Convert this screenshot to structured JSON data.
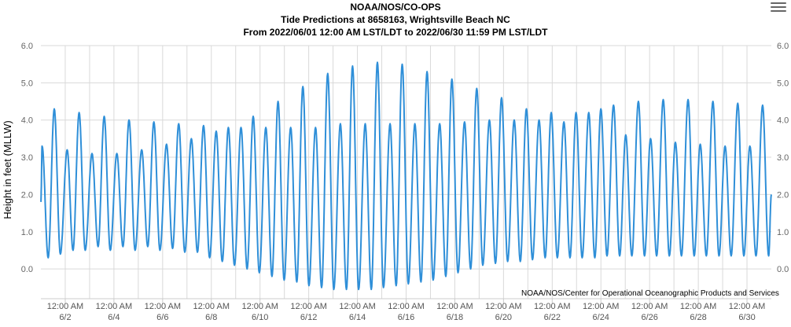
{
  "chart_data": {
    "type": "line",
    "title": [
      "NOAA/NOS/CO-OPS",
      "Tide Predictions at 8658163, Wrightsville Beach NC",
      "From 2022/06/01 12:00 AM LST/LDT to 2022/06/30 11:59 PM LST/LDT"
    ],
    "ylabel": "Height in feet (MLLW)",
    "xlabel": "",
    "ylim": [
      -0.8,
      6.0
    ],
    "yticks": [
      "6.0",
      "5.0",
      "4.0",
      "3.0",
      "2.0",
      "1.0",
      "0.0"
    ],
    "y_axes": "left-and-right",
    "xticks": [
      {
        "time": "12:00 AM",
        "date": "6/2"
      },
      {
        "time": "12:00 AM",
        "date": "6/4"
      },
      {
        "time": "12:00 AM",
        "date": "6/6"
      },
      {
        "time": "12:00 AM",
        "date": "6/8"
      },
      {
        "time": "12:00 AM",
        "date": "6/10"
      },
      {
        "time": "12:00 AM",
        "date": "6/12"
      },
      {
        "time": "12:00 AM",
        "date": "6/14"
      },
      {
        "time": "12:00 AM",
        "date": "6/16"
      },
      {
        "time": "12:00 AM",
        "date": "6/18"
      },
      {
        "time": "12:00 AM",
        "date": "6/20"
      },
      {
        "time": "12:00 AM",
        "date": "6/22"
      },
      {
        "time": "12:00 AM",
        "date": "6/24"
      },
      {
        "time": "12:00 AM",
        "date": "6/26"
      },
      {
        "time": "12:00 AM",
        "date": "6/28"
      },
      {
        "time": "12:00 AM",
        "date": "6/30"
      }
    ],
    "x_start": "2022/06/01 12:00 AM",
    "x_end": "2022/06/30 11:59 PM",
    "grid": true,
    "legend": "none",
    "series": [
      {
        "color": "#2f8fd8",
        "x_unit": "day of June 2022",
        "extrema": [
          [
            1.05,
            3.3
          ],
          [
            1.3,
            0.3
          ],
          [
            1.55,
            4.3
          ],
          [
            1.8,
            0.4
          ],
          [
            2.08,
            3.2
          ],
          [
            2.32,
            0.5
          ],
          [
            2.57,
            4.2
          ],
          [
            2.82,
            0.5
          ],
          [
            3.1,
            3.1
          ],
          [
            3.35,
            0.6
          ],
          [
            3.6,
            4.1
          ],
          [
            3.85,
            0.5
          ],
          [
            4.12,
            3.1
          ],
          [
            4.37,
            0.6
          ],
          [
            4.62,
            4.0
          ],
          [
            4.87,
            0.5
          ],
          [
            5.14,
            3.2
          ],
          [
            5.39,
            0.6
          ],
          [
            5.64,
            3.95
          ],
          [
            5.89,
            0.5
          ],
          [
            6.16,
            3.35
          ],
          [
            6.41,
            0.55
          ],
          [
            6.66,
            3.9
          ],
          [
            6.91,
            0.45
          ],
          [
            7.18,
            3.5
          ],
          [
            7.43,
            0.45
          ],
          [
            7.68,
            3.85
          ],
          [
            7.93,
            0.3
          ],
          [
            8.2,
            3.7
          ],
          [
            8.45,
            0.2
          ],
          [
            8.7,
            3.8
          ],
          [
            8.95,
            0.1
          ],
          [
            9.22,
            3.8
          ],
          [
            9.47,
            0.0
          ],
          [
            9.72,
            4.1
          ],
          [
            9.97,
            -0.1
          ],
          [
            10.24,
            3.8
          ],
          [
            10.49,
            -0.2
          ],
          [
            10.74,
            4.5
          ],
          [
            10.99,
            -0.3
          ],
          [
            11.26,
            3.8
          ],
          [
            11.51,
            -0.35
          ],
          [
            11.76,
            4.9
          ],
          [
            12.01,
            -0.45
          ],
          [
            12.28,
            3.8
          ],
          [
            12.53,
            -0.5
          ],
          [
            12.78,
            5.25
          ],
          [
            13.03,
            -0.55
          ],
          [
            13.3,
            3.9
          ],
          [
            13.55,
            -0.55
          ],
          [
            13.8,
            5.45
          ],
          [
            14.05,
            -0.55
          ],
          [
            14.32,
            3.9
          ],
          [
            14.57,
            -0.55
          ],
          [
            14.82,
            5.55
          ],
          [
            15.07,
            -0.5
          ],
          [
            15.34,
            3.9
          ],
          [
            15.59,
            -0.45
          ],
          [
            15.84,
            5.5
          ],
          [
            16.09,
            -0.4
          ],
          [
            16.36,
            3.9
          ],
          [
            16.61,
            -0.35
          ],
          [
            16.86,
            5.3
          ],
          [
            17.11,
            -0.3
          ],
          [
            17.38,
            3.9
          ],
          [
            17.63,
            -0.2
          ],
          [
            17.88,
            5.1
          ],
          [
            18.13,
            -0.1
          ],
          [
            18.4,
            3.95
          ],
          [
            18.65,
            0.0
          ],
          [
            18.9,
            4.85
          ],
          [
            19.15,
            0.1
          ],
          [
            19.42,
            4.0
          ],
          [
            19.67,
            0.15
          ],
          [
            19.92,
            4.6
          ],
          [
            20.17,
            0.2
          ],
          [
            20.44,
            4.0
          ],
          [
            20.69,
            0.2
          ],
          [
            20.94,
            4.3
          ],
          [
            21.19,
            0.25
          ],
          [
            21.46,
            4.0
          ],
          [
            21.71,
            0.3
          ],
          [
            21.96,
            4.2
          ],
          [
            22.21,
            0.3
          ],
          [
            22.48,
            3.95
          ],
          [
            22.73,
            0.3
          ],
          [
            22.98,
            4.2
          ],
          [
            23.23,
            0.3
          ],
          [
            23.5,
            4.2
          ],
          [
            23.75,
            0.3
          ],
          [
            24.0,
            4.3
          ],
          [
            24.25,
            0.35
          ],
          [
            24.52,
            4.4
          ],
          [
            24.77,
            0.35
          ],
          [
            25.02,
            3.6
          ],
          [
            25.27,
            0.35
          ],
          [
            25.54,
            4.5
          ],
          [
            25.79,
            0.35
          ],
          [
            26.04,
            3.5
          ],
          [
            26.29,
            0.35
          ],
          [
            26.56,
            4.55
          ],
          [
            26.81,
            0.35
          ],
          [
            27.06,
            3.4
          ],
          [
            27.31,
            0.35
          ],
          [
            27.58,
            4.55
          ],
          [
            27.83,
            0.35
          ],
          [
            28.08,
            3.35
          ],
          [
            28.33,
            0.35
          ],
          [
            28.6,
            4.5
          ],
          [
            28.85,
            0.35
          ],
          [
            29.1,
            3.3
          ],
          [
            29.35,
            0.35
          ],
          [
            29.62,
            4.45
          ],
          [
            29.87,
            0.35
          ],
          [
            30.12,
            3.3
          ],
          [
            30.37,
            0.35
          ],
          [
            30.64,
            4.4
          ],
          [
            30.89,
            0.35
          ],
          [
            31.0,
            2.0
          ]
        ]
      }
    ],
    "credits": "NOAA/NOS/Center for Operational Oceanographic Products and Services"
  },
  "toolbar": {
    "menu_icon": "hamburger-menu-icon"
  }
}
